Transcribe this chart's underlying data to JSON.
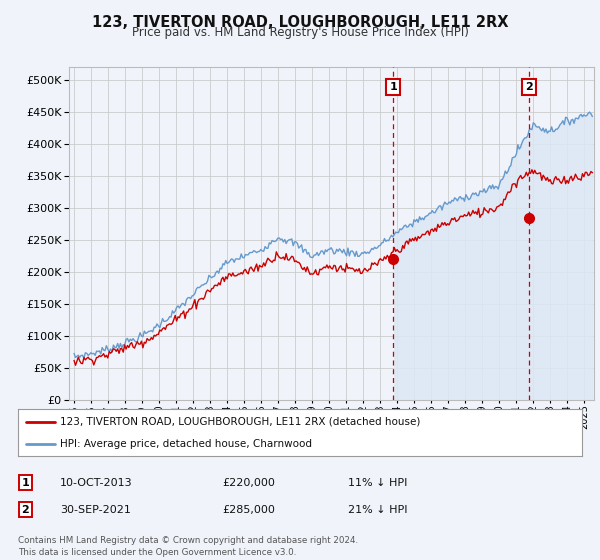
{
  "title": "123, TIVERTON ROAD, LOUGHBOROUGH, LE11 2RX",
  "subtitle": "Price paid vs. HM Land Registry's House Price Index (HPI)",
  "background_color": "#f0f4fa",
  "plot_bg_color": "#f0f4fa",
  "ylim": [
    0,
    520000
  ],
  "yticks": [
    0,
    50000,
    100000,
    150000,
    200000,
    250000,
    300000,
    350000,
    400000,
    450000,
    500000
  ],
  "xlim_start": 1994.7,
  "xlim_end": 2025.6,
  "legend_label_red": "123, TIVERTON ROAD, LOUGHBOROUGH, LE11 2RX (detached house)",
  "legend_label_blue": "HPI: Average price, detached house, Charnwood",
  "sale1_date": "10-OCT-2013",
  "sale1_price": "£220,000",
  "sale1_pct": "11% ↓ HPI",
  "sale1_x": 2013.78,
  "sale1_y": 220000,
  "sale2_date": "30-SEP-2021",
  "sale2_price": "£285,000",
  "sale2_pct": "21% ↓ HPI",
  "sale2_x": 2021.75,
  "sale2_y": 285000,
  "footer": "Contains HM Land Registry data © Crown copyright and database right 2024.\nThis data is licensed under the Open Government Licence v3.0.",
  "red_color": "#cc0000",
  "blue_color": "#6699cc",
  "blue_fill_color": "#dce8f5",
  "grid_color": "#cccccc",
  "sale_box_bg": "#dce8f5"
}
